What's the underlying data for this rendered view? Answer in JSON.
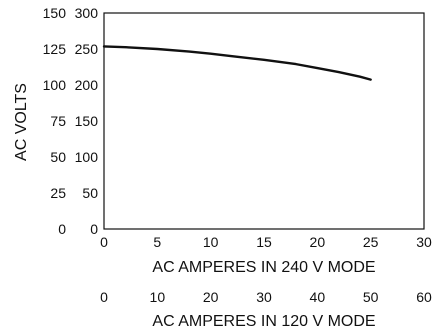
{
  "chart_data": {
    "type": "line",
    "title": "",
    "ylabel": "AC VOLTS",
    "xlabel": "AC AMPERES IN 240 V MODE",
    "xlabel_secondary": "AC AMPERES IN 120 V MODE",
    "xlim": [
      0,
      30
    ],
    "xlim_secondary": [
      0,
      60
    ],
    "ylim": [
      0,
      300
    ],
    "ylim_secondary": [
      0,
      150
    ],
    "x_ticks": [
      "0",
      "5",
      "10",
      "15",
      "20",
      "25",
      "30"
    ],
    "x_ticks_secondary": [
      "0",
      "10",
      "20",
      "30",
      "40",
      "50",
      "60"
    ],
    "y_ticks": [
      "0",
      "50",
      "100",
      "150",
      "200",
      "250",
      "300"
    ],
    "y_ticks_secondary": [
      "0",
      "25",
      "50",
      "75",
      "100",
      "125",
      "150"
    ],
    "grid": false,
    "series": [
      {
        "x": [
          0,
          2,
          5,
          8,
          10,
          12,
          15,
          18,
          20,
          22,
          24,
          25
        ],
        "y": [
          253.5,
          252.5,
          250,
          246.5,
          243.5,
          240,
          235,
          229,
          223.5,
          218,
          211.5,
          207.5
        ]
      }
    ]
  }
}
